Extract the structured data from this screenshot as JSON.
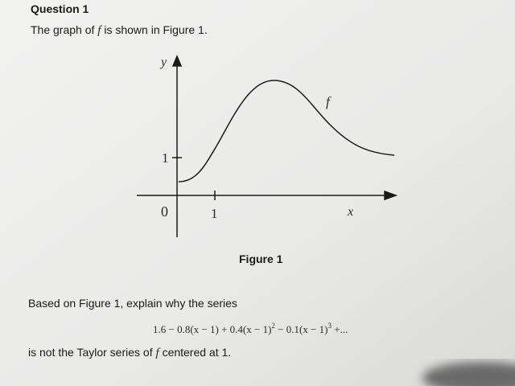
{
  "question": {
    "title": "Question 1",
    "intro": {
      "before": "The graph of",
      "function": "f",
      "after": "is shown in Figure 1."
    }
  },
  "figure": {
    "y_axis_label": "y",
    "x_axis_label": "x",
    "curve_label": "f",
    "y_tick": "1",
    "origin": "0",
    "x_tick": "1",
    "caption": "Figure 1"
  },
  "prompt": "Based on Figure 1, explain why the series",
  "series": {
    "part1": "1.6 − 0.8(x − 1) + 0.4(x − 1)",
    "exp1": "2",
    "part2": " − 0.1(x − 1)",
    "exp2": "3",
    "part3": " +..."
  },
  "closing": {
    "before": "is not the Taylor series of",
    "function": "f",
    "after": "centered at 1."
  }
}
